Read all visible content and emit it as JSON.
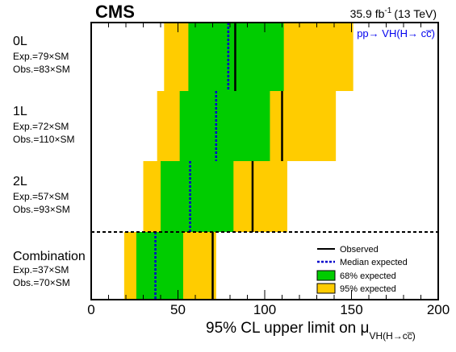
{
  "header": {
    "experiment": "CMS",
    "luminosity": "35.9 fb",
    "luminosity_sup": "-1",
    "energy": "(13 TeV)",
    "process": "pp→ VH(H→ cc̅)"
  },
  "chart_data": {
    "type": "bar",
    "orientation": "horizontal",
    "xlabel": "95% CL upper limit on μ",
    "xlabel_sub": "VH(H→cc̅)",
    "xlim": [
      0,
      200
    ],
    "xticks": [
      0,
      50,
      100,
      150,
      200
    ],
    "categories": [
      "0L",
      "1L",
      "2L",
      "Combination"
    ],
    "category_details": [
      {
        "name": "0L",
        "expected": "Exp.=79×SM",
        "observed": "Obs.=83×SM"
      },
      {
        "name": "1L",
        "expected": "Exp.=72×SM",
        "observed": "Obs.=110×SM"
      },
      {
        "name": "2L",
        "expected": "Exp.=57×SM",
        "observed": "Obs.=93×SM"
      },
      {
        "name": "Combination",
        "expected": "Exp.=37×SM",
        "observed": "Obs.=70×SM"
      }
    ],
    "series": [
      {
        "name": "Observed",
        "values": [
          83,
          110,
          93,
          70
        ]
      },
      {
        "name": "Median expected",
        "values": [
          79,
          72,
          57,
          37
        ]
      },
      {
        "name": "68% expected",
        "ranges": [
          [
            56,
            111
          ],
          [
            51,
            103
          ],
          [
            40,
            82
          ],
          [
            26,
            53
          ]
        ]
      },
      {
        "name": "95% expected",
        "ranges": [
          [
            42,
            151
          ],
          [
            38,
            141
          ],
          [
            30,
            113
          ],
          [
            19,
            72
          ]
        ]
      }
    ],
    "legend": [
      "Observed",
      "Median expected",
      "68% expected",
      "95% expected"
    ],
    "legend_position": "bottom-right",
    "colors": {
      "band68": "#00cc00",
      "band95": "#ffcc00",
      "observed": "#000000",
      "expected": "#0000cc"
    },
    "grid": false
  }
}
